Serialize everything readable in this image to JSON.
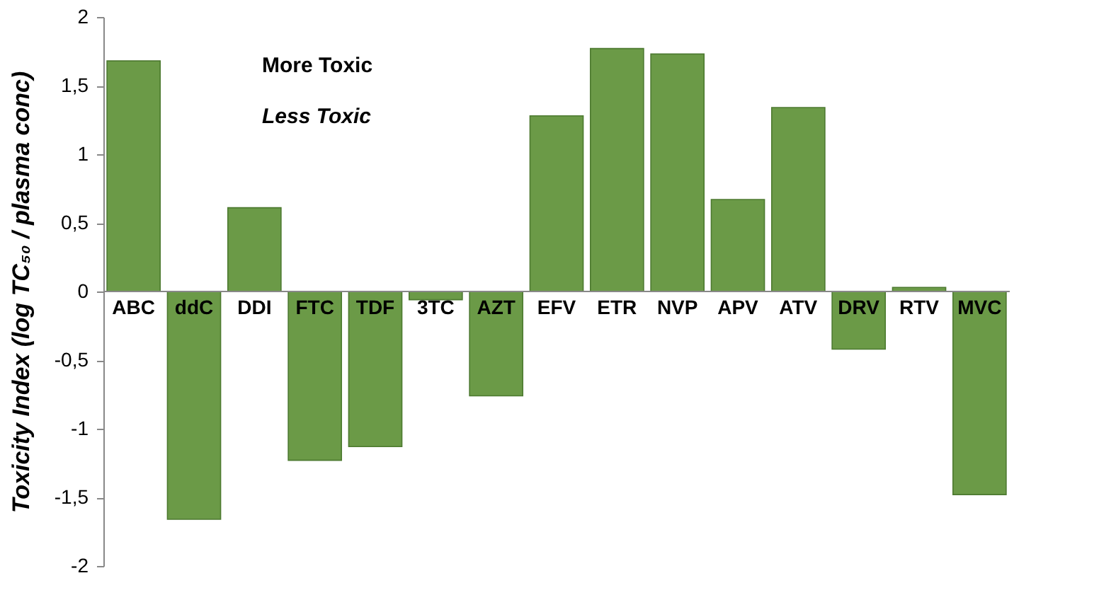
{
  "chart_data": {
    "type": "bar",
    "ylabel": "Toxicity Index (log TC₅₀ / plasma conc)",
    "categories": [
      "ABC",
      "ddC",
      "DDI",
      "FTC",
      "TDF",
      "3TC",
      "AZT",
      "EFV",
      "ETR",
      "NVP",
      "APV",
      "ATV",
      "DRV",
      "RTV",
      "MVC"
    ],
    "values": [
      1.68,
      -1.66,
      0.61,
      -1.23,
      -1.13,
      -0.06,
      -0.76,
      1.28,
      1.77,
      1.73,
      0.67,
      1.34,
      -0.42,
      0.03,
      -1.48
    ],
    "color": "#6b9a47",
    "ylim": [
      -2,
      2
    ],
    "yticks": [
      {
        "value": -2,
        "label": "-2"
      },
      {
        "value": -1.5,
        "label": "-1,5"
      },
      {
        "value": -1,
        "label": "-1"
      },
      {
        "value": -0.5,
        "label": "-0,5"
      },
      {
        "value": 0,
        "label": "0"
      },
      {
        "value": 0.5,
        "label": "0,5"
      },
      {
        "value": 1,
        "label": "1"
      },
      {
        "value": 1.5,
        "label": "1,5"
      },
      {
        "value": 2,
        "label": "2"
      }
    ],
    "annotations": [
      "More Toxic",
      "Less Toxic"
    ],
    "grid": false
  }
}
